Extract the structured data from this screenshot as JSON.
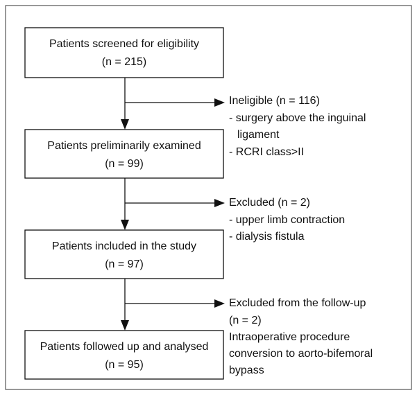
{
  "nodes": [
    {
      "lines": [
        "Patients screened for eligibility",
        "(n = 215)"
      ]
    },
    {
      "lines": [
        "Patients preliminarily examined",
        "(n = 99)"
      ]
    },
    {
      "lines": [
        "Patients included in the study",
        "(n = 97)"
      ]
    },
    {
      "lines": [
        "Patients followed up and analysed",
        "(n = 95)"
      ]
    }
  ],
  "exclusions": [
    {
      "lines": [
        "Ineligible (n = 116)",
        "- surgery above the inguinal",
        "ligament",
        "- RCRI class>II"
      ]
    },
    {
      "lines": [
        "Excluded (n = 2)",
        "- upper limb contraction",
        "- dialysis fistula"
      ]
    },
    {
      "lines": [
        "Excluded from the follow-up",
        "(n = 2)",
        "Intraoperative procedure",
        "conversion to aorto-bifemoral",
        "bypass"
      ]
    }
  ]
}
